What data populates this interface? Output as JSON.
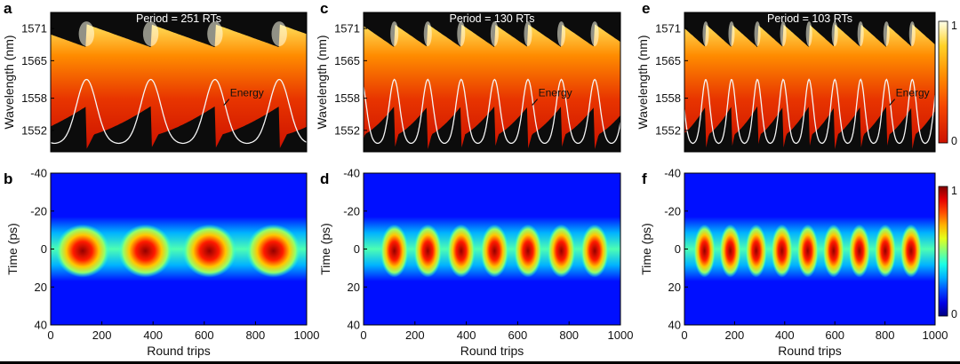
{
  "figure": {
    "top_ylabel": "Wavelength (nm)",
    "bottom_ylabel": "Time (ps)",
    "xlabel": "Round trips",
    "energy_label": "Energy",
    "spectral_colorbar_ticks": [
      "1",
      "0"
    ],
    "temporal_colorbar_ticks": [
      "1",
      "0"
    ]
  },
  "chart_data": [
    {
      "panel": "a",
      "type": "heatmap",
      "title": "Period = 251 RTs",
      "quantity": "spectral intensity (normalized) with energy trace overlay",
      "xlabel": "",
      "ylabel": "Wavelength (nm)",
      "xlim": [
        0,
        1000
      ],
      "ylim": [
        1548,
        1574
      ],
      "yticks": [
        1571,
        1565,
        1558,
        1552
      ],
      "yticklabels": [
        "1571",
        "1565",
        "1558",
        "1552"
      ],
      "period_rt": 251,
      "first_peak_rt": 140,
      "overlay": {
        "label": "Energy",
        "peaks_rt": [
          140,
          391,
          642,
          893
        ]
      }
    },
    {
      "panel": "c",
      "type": "heatmap",
      "title": "Period = 130 RTs",
      "quantity": "spectral intensity (normalized) with energy trace overlay",
      "xlabel": "",
      "ylabel": "",
      "xlim": [
        0,
        1000
      ],
      "ylim": [
        1548,
        1574
      ],
      "yticks": [
        1571,
        1565,
        1558,
        1552
      ],
      "yticklabels": [
        "1571",
        "1565",
        "1558",
        "1552"
      ],
      "period_rt": 130,
      "first_peak_rt": 120,
      "overlay": {
        "label": "Energy",
        "peaks_rt": [
          120,
          250,
          380,
          510,
          640,
          770,
          900
        ]
      }
    },
    {
      "panel": "e",
      "type": "heatmap",
      "title": "Period = 103 RTs",
      "quantity": "spectral intensity (normalized) with energy trace overlay",
      "xlabel": "",
      "ylabel": "",
      "xlim": [
        0,
        1000
      ],
      "ylim": [
        1548,
        1574
      ],
      "yticks": [
        1571,
        1565,
        1558,
        1552
      ],
      "yticklabels": [
        "1571",
        "1565",
        "1558",
        "1552"
      ],
      "period_rt": 103,
      "first_peak_rt": 85,
      "overlay": {
        "label": "Energy",
        "peaks_rt": [
          85,
          188,
          291,
          394,
          497,
          600,
          703,
          806,
          909
        ]
      },
      "colorbar": {
        "min": 0,
        "max": 1,
        "colormap": "hot"
      }
    },
    {
      "panel": "b",
      "type": "heatmap",
      "title": "",
      "quantity": "temporal intensity (normalized)",
      "xlabel": "Round trips",
      "ylabel": "Time (ps)",
      "xlim": [
        0,
        1000
      ],
      "ylim": [
        40,
        -40
      ],
      "xticks": [
        0,
        200,
        400,
        600,
        800,
        1000
      ],
      "yticks": [
        -40,
        -20,
        0,
        20,
        40
      ],
      "period_rt": 251,
      "pulse_centers_rt": [
        125,
        370,
        620,
        870
      ]
    },
    {
      "panel": "d",
      "type": "heatmap",
      "title": "",
      "quantity": "temporal intensity (normalized)",
      "xlabel": "Round trips",
      "ylabel": "",
      "xlim": [
        0,
        1000
      ],
      "ylim": [
        40,
        -40
      ],
      "xticks": [
        0,
        200,
        400,
        600,
        800,
        1000
      ],
      "yticks": [
        -40,
        -20,
        0,
        20,
        40
      ],
      "period_rt": 130,
      "pulse_centers_rt": [
        120,
        250,
        380,
        510,
        640,
        770,
        900
      ]
    },
    {
      "panel": "f",
      "type": "heatmap",
      "title": "",
      "quantity": "temporal intensity (normalized)",
      "xlabel": "Round trips",
      "ylabel": "",
      "xlim": [
        0,
        1000
      ],
      "ylim": [
        40,
        -40
      ],
      "xticks": [
        0,
        200,
        400,
        600,
        800,
        1000
      ],
      "yticks": [
        -40,
        -20,
        0,
        20,
        40
      ],
      "period_rt": 103,
      "pulse_centers_rt": [
        80,
        183,
        286,
        389,
        492,
        595,
        698,
        801,
        904
      ],
      "colorbar": {
        "min": 0,
        "max": 1,
        "colormap": "jet"
      }
    }
  ]
}
